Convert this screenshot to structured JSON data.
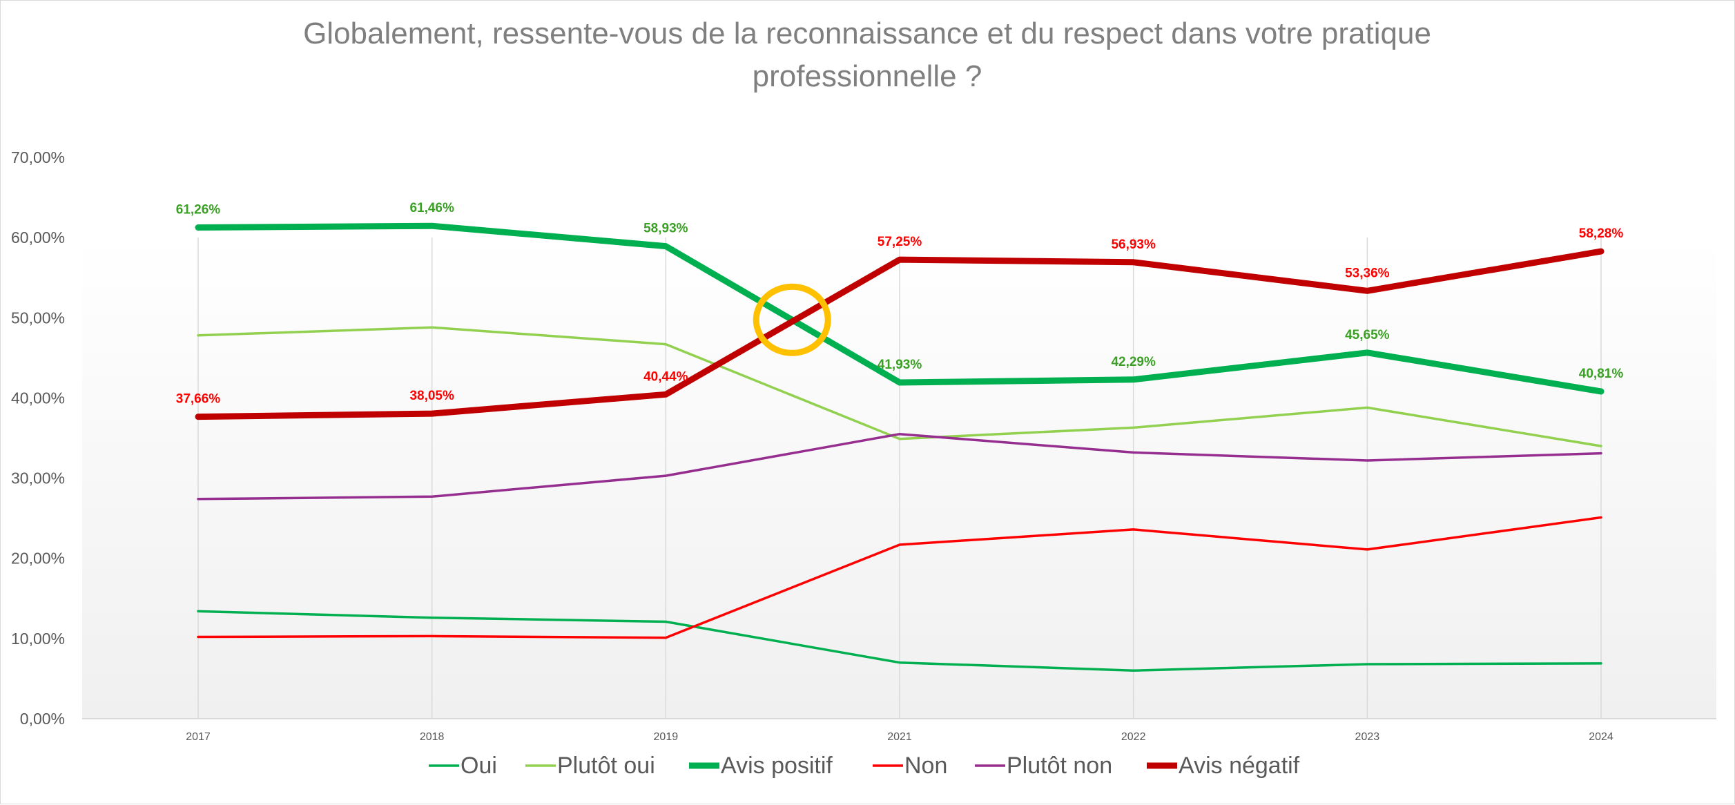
{
  "chart_data": {
    "type": "line",
    "title": "Globalement, ressente-vous de la reconnaissance et du respect dans votre pratique professionnelle ?",
    "title_lines": [
      "Globalement, ressente-vous de la reconnaissance et du respect dans votre pratique",
      "professionnelle ?"
    ],
    "categories": [
      "2017",
      "2018",
      "2019",
      "2021",
      "2022",
      "2023",
      "2024"
    ],
    "ylim": [
      0,
      70
    ],
    "yticks": [
      {
        "value": 0,
        "label": "0,00%"
      },
      {
        "value": 10,
        "label": "10,00%"
      },
      {
        "value": 20,
        "label": "20,00%"
      },
      {
        "value": 30,
        "label": "30,00%"
      },
      {
        "value": 40,
        "label": "40,00%"
      },
      {
        "value": 50,
        "label": "50,00%"
      },
      {
        "value": 60,
        "label": "60,00%"
      },
      {
        "value": 70,
        "label": "70,00%"
      }
    ],
    "grid": "vertical",
    "legend_position": "bottom",
    "series": [
      {
        "name": "Oui",
        "color": "#00b050",
        "width": "thin",
        "values": [
          13.4,
          12.6,
          12.1,
          7.0,
          6.0,
          6.8,
          6.9
        ]
      },
      {
        "name": "Plutôt oui",
        "color": "#92d050",
        "width": "thin",
        "values": [
          47.8,
          48.8,
          46.7,
          34.9,
          36.3,
          38.8,
          34.0
        ]
      },
      {
        "name": "Avis positif",
        "color": "#00b050",
        "width": "thick",
        "values": [
          61.26,
          61.46,
          58.93,
          41.93,
          42.29,
          45.65,
          40.81
        ],
        "labels": [
          "61,26%",
          "61,46%",
          "58,93%",
          "41,93%",
          "42,29%",
          "45,65%",
          "40,81%"
        ],
        "label_color": "#3aa024"
      },
      {
        "name": "Non",
        "color": "#ff0000",
        "width": "thin",
        "values": [
          10.2,
          10.3,
          10.1,
          21.7,
          23.6,
          21.1,
          25.1
        ]
      },
      {
        "name": "Plutôt non",
        "color": "#952e8f",
        "width": "thin",
        "values": [
          27.4,
          27.7,
          30.3,
          35.5,
          33.2,
          32.2,
          33.1
        ]
      },
      {
        "name": "Avis négatif",
        "color": "#c00000",
        "width": "thick",
        "values": [
          37.66,
          38.05,
          40.44,
          57.25,
          56.93,
          53.36,
          58.28
        ],
        "labels": [
          "37,66%",
          "38,05%",
          "40,44%",
          "57,25%",
          "56,93%",
          "53,36%",
          "58,28%"
        ],
        "label_color": "#ff0000"
      }
    ],
    "annotations": [
      {
        "type": "circle",
        "color": "#ffc000",
        "between": [
          "2019",
          "2021"
        ],
        "position": 0.54,
        "value": 50
      }
    ]
  }
}
